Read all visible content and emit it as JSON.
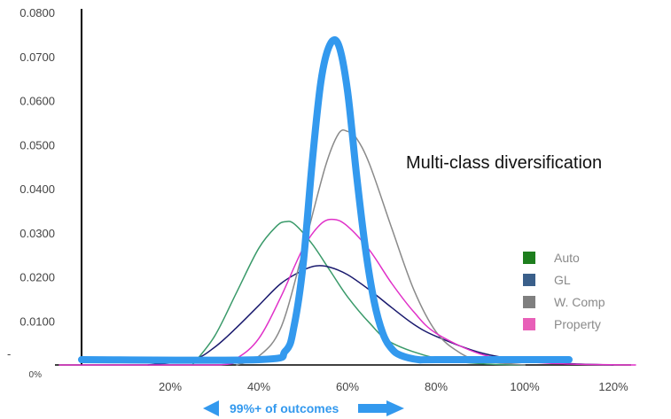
{
  "chart_data": {
    "type": "line",
    "title": "",
    "xlabel": "",
    "ylabel": "",
    "xlim": [
      -0.05,
      1.25
    ],
    "ylim": [
      0,
      0.08
    ],
    "x_ticks": [
      {
        "value": 0.2,
        "label": "20%"
      },
      {
        "value": 0.4,
        "label": "40%"
      },
      {
        "value": 0.6,
        "label": "60%"
      },
      {
        "value": 0.8,
        "label": "80%"
      },
      {
        "value": 1.0,
        "label": "100%"
      },
      {
        "value": 1.2,
        "label": "120%"
      }
    ],
    "y_ticks": [
      {
        "value": 0.08,
        "label": "0.0800"
      },
      {
        "value": 0.07,
        "label": "0.0700"
      },
      {
        "value": 0.06,
        "label": "0.0600"
      },
      {
        "value": 0.05,
        "label": "0.0500"
      },
      {
        "value": 0.04,
        "label": "0.0400"
      },
      {
        "value": 0.03,
        "label": "0.0300"
      },
      {
        "value": 0.02,
        "label": "0.0200"
      },
      {
        "value": 0.01,
        "label": "0.0100"
      },
      {
        "value": 0.0,
        "label": "0%"
      }
    ],
    "y_dash_label": "-",
    "grid": false,
    "legend_position": "right",
    "series": [
      {
        "name": "Auto",
        "color": "#3a9a6a",
        "x": [
          0.25,
          0.3,
          0.35,
          0.4,
          0.44,
          0.46,
          0.48,
          0.52,
          0.56,
          0.6,
          0.65,
          0.7,
          0.8,
          0.9,
          1.0
        ],
        "y": [
          0.0,
          0.0065,
          0.0165,
          0.0265,
          0.0315,
          0.0325,
          0.032,
          0.0275,
          0.0215,
          0.0155,
          0.0095,
          0.005,
          0.0015,
          0.0003,
          0.0
        ]
      },
      {
        "name": "GL",
        "color": "#1a1a6e",
        "x": [
          0.15,
          0.25,
          0.3,
          0.35,
          0.4,
          0.45,
          0.5,
          0.53,
          0.56,
          0.6,
          0.65,
          0.7,
          0.75,
          0.8,
          0.9,
          1.0,
          1.1,
          1.2
        ],
        "y": [
          0.0,
          0.0012,
          0.004,
          0.0085,
          0.0135,
          0.0185,
          0.0215,
          0.0225,
          0.0222,
          0.0205,
          0.017,
          0.013,
          0.0092,
          0.0065,
          0.0028,
          0.001,
          0.0003,
          0.0
        ]
      },
      {
        "name": "W. Comp",
        "color": "#8a8a8a",
        "x": [
          0.35,
          0.4,
          0.45,
          0.5,
          0.55,
          0.58,
          0.6,
          0.62,
          0.65,
          0.7,
          0.75,
          0.8,
          0.85,
          0.9,
          1.0
        ],
        "y": [
          0.0,
          0.002,
          0.0085,
          0.026,
          0.045,
          0.0525,
          0.053,
          0.0515,
          0.0455,
          0.031,
          0.017,
          0.0075,
          0.003,
          0.001,
          0.0
        ]
      },
      {
        "name": "Property",
        "color": "#e030c8",
        "x": [
          -0.05,
          0.3,
          0.35,
          0.4,
          0.45,
          0.5,
          0.54,
          0.57,
          0.6,
          0.65,
          0.7,
          0.75,
          0.8,
          0.9,
          1.0,
          1.1,
          1.25
        ],
        "y": [
          0.0,
          0.0,
          0.0015,
          0.006,
          0.0155,
          0.0265,
          0.032,
          0.033,
          0.0315,
          0.026,
          0.0185,
          0.012,
          0.0072,
          0.0025,
          0.0008,
          0.0002,
          0.0
        ]
      },
      {
        "name": "Multi-class diversification",
        "color": "#3399ee",
        "x": [
          0.0,
          0.4,
          0.46,
          0.48,
          0.5,
          0.52,
          0.54,
          0.56,
          0.58,
          0.6,
          0.62,
          0.64,
          0.66,
          0.68,
          0.7,
          0.72,
          0.76,
          0.8,
          1.1
        ],
        "y": [
          0.0,
          0.0,
          0.002,
          0.008,
          0.022,
          0.045,
          0.064,
          0.0725,
          0.0725,
          0.062,
          0.043,
          0.026,
          0.0135,
          0.006,
          0.0025,
          0.001,
          0.0,
          0.0,
          0.0
        ]
      }
    ],
    "legend": [
      {
        "label": "Auto",
        "color": "#1e7e1e"
      },
      {
        "label": "GL",
        "color": "#3a5f8a"
      },
      {
        "label": "W. Comp",
        "color": "#7f7f7f"
      },
      {
        "label": "Property",
        "color": "#e85fb8"
      }
    ],
    "annotations": {
      "curve_label": "Multi-class diversification",
      "outcomes_label": "99%+ of outcomes",
      "outcomes_color": "#3399ee"
    }
  }
}
